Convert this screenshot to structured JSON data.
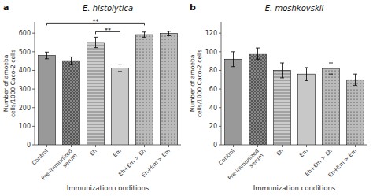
{
  "chart_data": [
    {
      "type": "bar",
      "title": "E. histolytica",
      "panel_label": "a",
      "categories": [
        "Control",
        "Pre-immunized\nserum",
        "Eh",
        "Em",
        "Eh+Em > Eh",
        "Eh+Em > Em"
      ],
      "values": [
        480,
        452,
        550,
        412,
        592,
        598
      ],
      "errors": [
        18,
        20,
        28,
        18,
        14,
        12
      ],
      "ylim": [
        0,
        660
      ],
      "yticks": [
        0,
        100,
        200,
        300,
        400,
        500,
        600
      ],
      "ylabel": "Number of amoeba\ncells/1000 Caco-2 cells",
      "xlabel": "Immunization conditions",
      "colors": [
        "#999999",
        "#888888",
        "#cccccc",
        "#ffffff",
        "#bbbbbb",
        "#bbbbbb"
      ],
      "grid": false,
      "annotations": [
        {
          "text": "**",
          "x1": 2,
          "x2": 3
        },
        {
          "text": "**",
          "x1": 0,
          "x2": 4
        }
      ]
    },
    {
      "type": "bar",
      "title": "E. moshkovskii",
      "panel_label": "b",
      "categories": [
        "Control",
        "Pre-immunized\nserum",
        "Eh",
        "Em",
        "Eh+Em > Eh",
        "Eh+Em > Em"
      ],
      "values": [
        92,
        98,
        80,
        76,
        82,
        70
      ],
      "errors": [
        8,
        6,
        8,
        7,
        6,
        6
      ],
      "ylim": [
        0,
        132
      ],
      "yticks": [
        0,
        20,
        40,
        60,
        80,
        100,
        120
      ],
      "ylabel": "Number of amoeba\ncells/1000 Caco-2 cells",
      "xlabel": "Immunization conditions",
      "colors": [
        "#999999",
        "#888888",
        "#cccccc",
        "#ffffff",
        "#bbbbbb",
        "#bbbbbb"
      ],
      "grid": false
    }
  ]
}
